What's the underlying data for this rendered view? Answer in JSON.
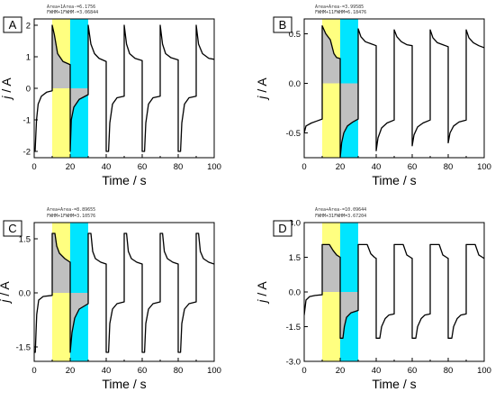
{
  "figure": {
    "colors": {
      "yellow": "#ffff80",
      "cyan": "#00e5ff",
      "gray": "#c0c0c0",
      "curve": "#000000",
      "frame": "#000000"
    }
  },
  "chart_data": [
    {
      "type": "line",
      "panel": "A",
      "title": "",
      "annotation": [
        "Area+1Area-=6.1756",
        "FWHM+1FWHM-=3.06844"
      ],
      "xlabel": "Time / s",
      "ylabel": "j / A",
      "xlim": [
        0,
        100
      ],
      "ylim": [
        -2.2,
        2.2
      ],
      "x_ticks": [
        0,
        20,
        40,
        60,
        80,
        100
      ],
      "y_ticks": [
        -2,
        -1,
        0,
        1,
        2
      ],
      "y_tick_labels": [
        "-2",
        "-1",
        "0",
        "1",
        "2"
      ],
      "shaded_regions": [
        {
          "x": [
            10,
            20
          ],
          "color": "yellow"
        },
        {
          "x": [
            20,
            30
          ],
          "color": "cyan"
        }
      ],
      "grid": false,
      "series": [
        {
          "values": [
            [
              0,
              -2.0
            ],
            [
              0.5,
              -2.0
            ],
            [
              1.3,
              -1.0
            ],
            [
              2.2,
              -0.5
            ],
            [
              4,
              -0.25
            ],
            [
              7,
              -0.12
            ],
            [
              10,
              -0.08
            ],
            [
              10,
              2.0
            ],
            [
              11.2,
              1.7
            ],
            [
              13,
              1.1
            ],
            [
              16,
              0.85
            ],
            [
              20,
              0.75
            ],
            [
              20,
              -2.0
            ],
            [
              20.6,
              -1.0
            ],
            [
              22,
              -0.6
            ],
            [
              25,
              -0.35
            ],
            [
              30,
              -0.2
            ],
            [
              30,
              2.0
            ],
            [
              31.5,
              1.4
            ],
            [
              33.5,
              1.1
            ],
            [
              36,
              0.95
            ],
            [
              40,
              0.85
            ],
            [
              40,
              -2.0
            ],
            [
              41.3,
              -2.0
            ],
            [
              42,
              -1.1
            ],
            [
              43.5,
              -0.5
            ],
            [
              46,
              -0.3
            ],
            [
              50,
              -0.25
            ],
            [
              50,
              2.0
            ],
            [
              51.3,
              1.4
            ],
            [
              53,
              1.1
            ],
            [
              56,
              0.95
            ],
            [
              60,
              0.88
            ],
            [
              60,
              -2.0
            ],
            [
              61.3,
              -2.0
            ],
            [
              62,
              -1.1
            ],
            [
              63.5,
              -0.5
            ],
            [
              66,
              -0.3
            ],
            [
              70,
              -0.25
            ],
            [
              70,
              2.0
            ],
            [
              71.3,
              1.4
            ],
            [
              73,
              1.1
            ],
            [
              76,
              0.97
            ],
            [
              80,
              0.9
            ],
            [
              80,
              -2.0
            ],
            [
              81.3,
              -2.0
            ],
            [
              82,
              -1.1
            ],
            [
              83.5,
              -0.5
            ],
            [
              86,
              -0.3
            ],
            [
              90,
              -0.25
            ],
            [
              90,
              2.0
            ],
            [
              91.3,
              1.4
            ],
            [
              93.5,
              1.1
            ],
            [
              97,
              0.95
            ],
            [
              100,
              0.92
            ]
          ]
        }
      ]
    },
    {
      "type": "line",
      "panel": "B",
      "title": "",
      "annotation": [
        "Area+Area-=3.99585",
        "FWHM+11FWHM=6.18476"
      ],
      "xlabel": "Time / s",
      "ylabel": "j / A",
      "xlim": [
        0,
        100
      ],
      "ylim": [
        -0.75,
        0.65
      ],
      "x_ticks": [
        0,
        20,
        40,
        60,
        80,
        100
      ],
      "y_ticks": [
        -0.5,
        0.0,
        0.5
      ],
      "y_tick_labels": [
        "-0.5",
        "0.0",
        "0.5"
      ],
      "shaded_regions": [
        {
          "x": [
            10,
            20
          ],
          "color": "yellow"
        },
        {
          "x": [
            20,
            30
          ],
          "color": "cyan"
        }
      ],
      "grid": false,
      "series": [
        {
          "values": [
            [
              0,
              -0.5
            ],
            [
              1,
              -0.43
            ],
            [
              4,
              -0.4
            ],
            [
              7,
              -0.38
            ],
            [
              10,
              -0.36
            ],
            [
              10,
              0.58
            ],
            [
              12,
              0.5
            ],
            [
              14.5,
              0.44
            ],
            [
              16.5,
              0.3
            ],
            [
              18,
              0.26
            ],
            [
              20,
              0.25
            ],
            [
              20,
              -0.75
            ],
            [
              20.8,
              -0.6
            ],
            [
              22,
              -0.5
            ],
            [
              24,
              -0.43
            ],
            [
              27,
              -0.39
            ],
            [
              30,
              -0.36
            ],
            [
              30,
              0.55
            ],
            [
              31.5,
              0.47
            ],
            [
              34,
              0.42
            ],
            [
              37,
              0.4
            ],
            [
              40,
              0.38
            ],
            [
              40,
              -0.68
            ],
            [
              41,
              -0.55
            ],
            [
              43,
              -0.45
            ],
            [
              46,
              -0.4
            ],
            [
              50,
              -0.37
            ],
            [
              50,
              0.54
            ],
            [
              51.5,
              0.47
            ],
            [
              54,
              0.42
            ],
            [
              57,
              0.39
            ],
            [
              60,
              0.38
            ],
            [
              60,
              -0.63
            ],
            [
              61,
              -0.52
            ],
            [
              63,
              -0.44
            ],
            [
              66,
              -0.4
            ],
            [
              70,
              -0.37
            ],
            [
              70,
              0.54
            ],
            [
              71.5,
              0.46
            ],
            [
              74,
              0.41
            ],
            [
              77,
              0.39
            ],
            [
              80,
              0.37
            ],
            [
              80,
              -0.6
            ],
            [
              81,
              -0.5
            ],
            [
              83,
              -0.43
            ],
            [
              86,
              -0.39
            ],
            [
              90,
              -0.37
            ],
            [
              90,
              0.54
            ],
            [
              91.5,
              0.46
            ],
            [
              94,
              0.41
            ],
            [
              97,
              0.38
            ],
            [
              100,
              0.36
            ]
          ]
        }
      ]
    },
    {
      "type": "line",
      "panel": "C",
      "title": "",
      "annotation": [
        "Area+Area-=8.89655",
        "FWHM+1FWHM=3.10576"
      ],
      "xlabel": "Time / s",
      "ylabel": "j / A",
      "xlim": [
        0,
        100
      ],
      "ylim": [
        -1.9,
        1.95
      ],
      "x_ticks": [
        0,
        20,
        40,
        60,
        80,
        100
      ],
      "y_ticks": [
        -1.5,
        0.0,
        1.5
      ],
      "y_tick_labels": [
        "-1.5",
        "0.0",
        "1.5"
      ],
      "shaded_regions": [
        {
          "x": [
            10,
            20
          ],
          "color": "yellow"
        },
        {
          "x": [
            20,
            30
          ],
          "color": "cyan"
        }
      ],
      "grid": false,
      "series": [
        {
          "values": [
            [
              0,
              -1.65
            ],
            [
              0.6,
              -1.65
            ],
            [
              1.4,
              -0.6
            ],
            [
              2.5,
              -0.2
            ],
            [
              5,
              -0.1
            ],
            [
              10,
              -0.07
            ],
            [
              10,
              1.65
            ],
            [
              11.5,
              1.65
            ],
            [
              12.5,
              1.3
            ],
            [
              14,
              1.1
            ],
            [
              17,
              0.95
            ],
            [
              20,
              0.85
            ],
            [
              20,
              -1.65
            ],
            [
              21,
              -1.1
            ],
            [
              22.5,
              -0.7
            ],
            [
              25,
              -0.45
            ],
            [
              30,
              -0.3
            ],
            [
              30,
              1.65
            ],
            [
              31.5,
              1.65
            ],
            [
              32.5,
              1.15
            ],
            [
              34,
              0.95
            ],
            [
              37,
              0.85
            ],
            [
              40,
              0.8
            ],
            [
              40,
              -1.65
            ],
            [
              41.3,
              -1.65
            ],
            [
              42,
              -0.85
            ],
            [
              43.5,
              -0.45
            ],
            [
              46,
              -0.3
            ],
            [
              50,
              -0.25
            ],
            [
              50,
              1.65
            ],
            [
              51.3,
              1.65
            ],
            [
              52.3,
              1.15
            ],
            [
              54,
              0.95
            ],
            [
              57,
              0.85
            ],
            [
              60,
              0.8
            ],
            [
              60,
              -1.65
            ],
            [
              61.3,
              -1.65
            ],
            [
              62,
              -0.85
            ],
            [
              63.5,
              -0.45
            ],
            [
              66,
              -0.3
            ],
            [
              70,
              -0.25
            ],
            [
              70,
              1.65
            ],
            [
              71.3,
              1.65
            ],
            [
              72.3,
              1.15
            ],
            [
              74,
              0.95
            ],
            [
              77,
              0.85
            ],
            [
              80,
              0.8
            ],
            [
              80,
              -1.65
            ],
            [
              81.3,
              -1.65
            ],
            [
              82,
              -0.85
            ],
            [
              83.5,
              -0.45
            ],
            [
              86,
              -0.3
            ],
            [
              90,
              -0.25
            ],
            [
              90,
              1.65
            ],
            [
              91.3,
              1.65
            ],
            [
              92.3,
              1.15
            ],
            [
              94,
              0.95
            ],
            [
              97,
              0.85
            ],
            [
              100,
              0.8
            ]
          ]
        }
      ]
    },
    {
      "type": "line",
      "panel": "D",
      "title": "",
      "annotation": [
        "Area+Area-=10.09644",
        "FWHM+31FWHM=3.67204"
      ],
      "xlabel": "Time / s",
      "ylabel": "j / A",
      "xlim": [
        0,
        100
      ],
      "ylim": [
        -3.0,
        3.0
      ],
      "x_ticks": [
        0,
        20,
        40,
        60,
        80,
        100
      ],
      "y_ticks": [
        -3.0,
        -1.5,
        0.0,
        1.5,
        3.0
      ],
      "y_tick_labels": [
        "-3.0",
        "-1.5",
        "0.0",
        "1.5",
        "3.0"
      ],
      "shaded_regions": [
        {
          "x": [
            10,
            20
          ],
          "color": "yellow"
        },
        {
          "x": [
            20,
            30
          ],
          "color": "cyan"
        }
      ],
      "grid": false,
      "series": [
        {
          "values": [
            [
              0,
              -1.0
            ],
            [
              1,
              -0.35
            ],
            [
              3,
              -0.2
            ],
            [
              6,
              -0.15
            ],
            [
              10,
              -0.12
            ],
            [
              10,
              2.05
            ],
            [
              14,
              2.05
            ],
            [
              16,
              1.8
            ],
            [
              18,
              1.6
            ],
            [
              20,
              1.5
            ],
            [
              20,
              -2.0
            ],
            [
              21.5,
              -2.0
            ],
            [
              22.3,
              -1.5
            ],
            [
              23.5,
              -1.1
            ],
            [
              26,
              -0.9
            ],
            [
              30,
              -0.8
            ],
            [
              30,
              2.05
            ],
            [
              35,
              2.05
            ],
            [
              37,
              1.65
            ],
            [
              39,
              1.5
            ],
            [
              40,
              1.45
            ],
            [
              40,
              -2.0
            ],
            [
              42,
              -2.0
            ],
            [
              43,
              -1.5
            ],
            [
              45,
              -1.15
            ],
            [
              47,
              -1.0
            ],
            [
              50,
              -0.95
            ],
            [
              50,
              2.05
            ],
            [
              55,
              2.05
            ],
            [
              57,
              1.6
            ],
            [
              59,
              1.5
            ],
            [
              60,
              1.45
            ],
            [
              60,
              -2.0
            ],
            [
              62,
              -2.0
            ],
            [
              63,
              -1.5
            ],
            [
              65,
              -1.15
            ],
            [
              67,
              -1.0
            ],
            [
              70,
              -0.95
            ],
            [
              70,
              2.05
            ],
            [
              75,
              2.05
            ],
            [
              77,
              1.6
            ],
            [
              79,
              1.5
            ],
            [
              80,
              1.45
            ],
            [
              80,
              -2.0
            ],
            [
              82,
              -2.0
            ],
            [
              83,
              -1.5
            ],
            [
              85,
              -1.15
            ],
            [
              87,
              -1.0
            ],
            [
              90,
              -0.95
            ],
            [
              90,
              2.05
            ],
            [
              95,
              2.05
            ],
            [
              97,
              1.6
            ],
            [
              99,
              1.5
            ],
            [
              100,
              1.45
            ]
          ]
        }
      ]
    }
  ]
}
